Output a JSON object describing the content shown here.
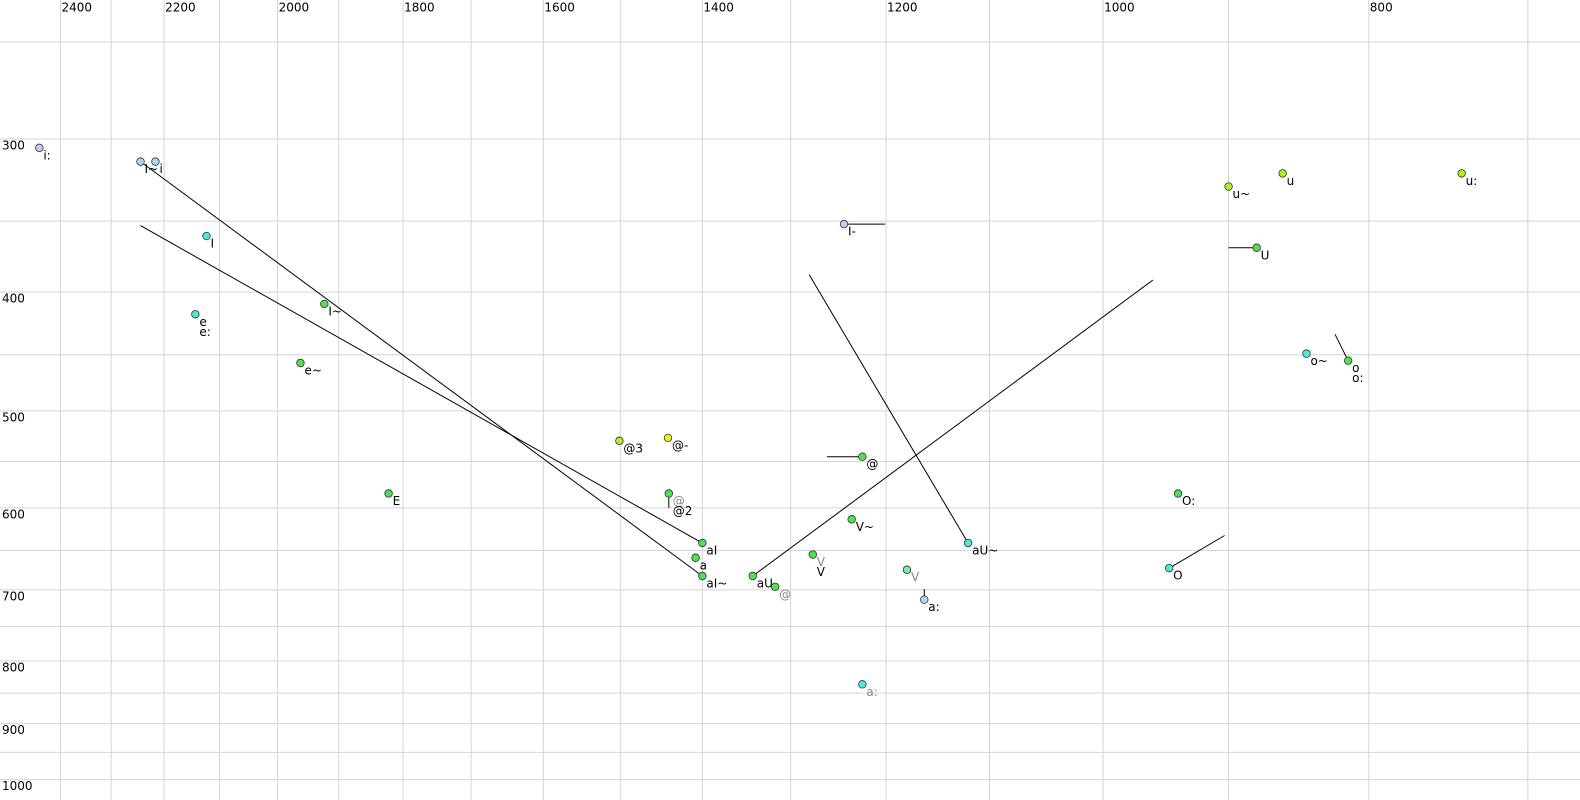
{
  "chart_data": {
    "type": "scatter",
    "xscale": "log",
    "yscale": "log",
    "xlim": [
      2525,
      670
    ],
    "ylim": [
      231,
      1039
    ],
    "xticks": [
      2400,
      2200,
      2000,
      1800,
      1600,
      1400,
      1200,
      1000,
      800
    ],
    "yticks": [
      300,
      400,
      500,
      600,
      700,
      800,
      900,
      1000
    ],
    "xgrid": [
      2400,
      2300,
      2200,
      2100,
      2000,
      1900,
      1800,
      1700,
      1600,
      1500,
      1400,
      1300,
      1200,
      1100,
      1000,
      900,
      800,
      700
    ],
    "ygrid": [
      250,
      300,
      350,
      400,
      450,
      500,
      550,
      600,
      650,
      700,
      750,
      800,
      850,
      900,
      950,
      1000
    ],
    "grid_color": "#d4d4d4",
    "label_color": "#000000",
    "points": [
      {
        "x": 2443,
        "y": 305,
        "color": "#c8c8f0",
        "labels": [
          "i:"
        ]
      },
      {
        "x": 2244,
        "y": 313,
        "color": "#a8d8f0",
        "labels": [
          "I~"
        ]
      },
      {
        "x": 2216,
        "y": 313,
        "color": "#a8d8f0",
        "labels": [
          "i"
        ]
      },
      {
        "x": 2123,
        "y": 360,
        "color": "#50e8d8",
        "labels": [
          "I"
        ]
      },
      {
        "x": 2143,
        "y": 417,
        "color": "#50e8d8",
        "labels": [
          "e",
          "e:"
        ]
      },
      {
        "x": 1923,
        "y": 409,
        "color": "#50e050",
        "labels": [
          "I~"
        ]
      },
      {
        "x": 1962,
        "y": 457,
        "color": "#50e050",
        "labels": [
          "e~"
        ]
      },
      {
        "x": 1822,
        "y": 584,
        "color": "#50e050",
        "labels": [
          "E"
        ]
      },
      {
        "x": 1501,
        "y": 529,
        "color": "#b0f020",
        "labels": [
          "@3"
        ]
      },
      {
        "x": 1441,
        "y": 526,
        "color": "#e8f020",
        "labels": [
          "@-"
        ]
      },
      {
        "x": 1440,
        "y": 584,
        "color": "#50e050",
        "labels": [
          "@",
          "@2"
        ],
        "label_colors": [
          "#888888",
          "#000000"
        ]
      },
      {
        "x": 1400,
        "y": 641,
        "color": "#50e050",
        "labels": [
          "aI"
        ]
      },
      {
        "x": 1408,
        "y": 659,
        "color": "#50e050",
        "labels": [
          "a"
        ]
      },
      {
        "x": 1400,
        "y": 682,
        "color": "#50e050",
        "labels": [
          "aI~"
        ]
      },
      {
        "x": 1342,
        "y": 682,
        "color": "#50e050",
        "labels": [
          "aU"
        ]
      },
      {
        "x": 1317,
        "y": 696,
        "color": "#50e050",
        "labels": [
          "@"
        ],
        "label_colors": [
          "#888888"
        ]
      },
      {
        "x": 1276,
        "y": 655,
        "color": "#50e050",
        "labels": [
          "V",
          "V"
        ],
        "label_colors": [
          "#888888",
          "#000000"
        ]
      },
      {
        "x": 1235,
        "y": 613,
        "color": "#50e050",
        "labels": [
          "V~"
        ]
      },
      {
        "x": 1224,
        "y": 545,
        "color": "#50e050",
        "labels": [
          "@"
        ]
      },
      {
        "x": 1243,
        "y": 352,
        "color": "#c8c8f0",
        "labels": [
          "I-"
        ]
      },
      {
        "x": 1179,
        "y": 674,
        "color": "#70f0a0",
        "labels": [
          "V"
        ],
        "label_colors": [
          "#888888"
        ]
      },
      {
        "x": 1162,
        "y": 713,
        "color": "#a8d8f0",
        "labels": [
          "a:"
        ]
      },
      {
        "x": 1224,
        "y": 836,
        "color": "#50e8d8",
        "labels": [
          "a:"
        ],
        "label_colors": [
          "#888888"
        ]
      },
      {
        "x": 1120,
        "y": 641,
        "color": "#50e8d8",
        "labels": [
          "aU~"
        ]
      },
      {
        "x": 939,
        "y": 584,
        "color": "#50e050",
        "labels": [
          "O:"
        ]
      },
      {
        "x": 946,
        "y": 672,
        "color": "#50e8d8",
        "labels": [
          "O"
        ]
      },
      {
        "x": 900,
        "y": 328,
        "color": "#b0f020",
        "labels": [
          "u~"
        ]
      },
      {
        "x": 860,
        "y": 320,
        "color": "#b0f020",
        "labels": [
          "u"
        ]
      },
      {
        "x": 740,
        "y": 320,
        "color": "#b0f020",
        "labels": [
          "u:"
        ]
      },
      {
        "x": 879,
        "y": 368,
        "color": "#50e050",
        "labels": [
          "U"
        ]
      },
      {
        "x": 843,
        "y": 449,
        "color": "#50e8d8",
        "labels": [
          "o~"
        ]
      },
      {
        "x": 814,
        "y": 455,
        "color": "#50e050",
        "labels": [
          "o",
          "o:"
        ]
      }
    ],
    "lines": [
      {
        "x": [
          2244,
          1400
        ],
        "y": [
          313,
          682
        ]
      },
      {
        "x": [
          2244,
          1400
        ],
        "y": [
          353,
          641
        ]
      },
      {
        "x": [
          1342,
          959
        ],
        "y": [
          682,
          391
        ]
      },
      {
        "x": [
          1280,
          1120
        ],
        "y": [
          387,
          641
        ]
      },
      {
        "x": [
          946,
          903
        ],
        "y": [
          672,
          632
        ]
      },
      {
        "x": [
          1261,
          1224
        ],
        "y": [
          545,
          545
        ]
      },
      {
        "x": [
          1243,
          1201
        ],
        "y": [
          352,
          352
        ]
      },
      {
        "x": [
          900,
          879
        ],
        "y": [
          368,
          368
        ]
      },
      {
        "x": [
          823,
          814
        ],
        "y": [
          433,
          455
        ]
      },
      {
        "x": [
          1162,
          1162
        ],
        "y": [
          699,
          713
        ]
      },
      {
        "x": [
          1440,
          1440
        ],
        "y": [
          584,
          600
        ]
      }
    ]
  }
}
